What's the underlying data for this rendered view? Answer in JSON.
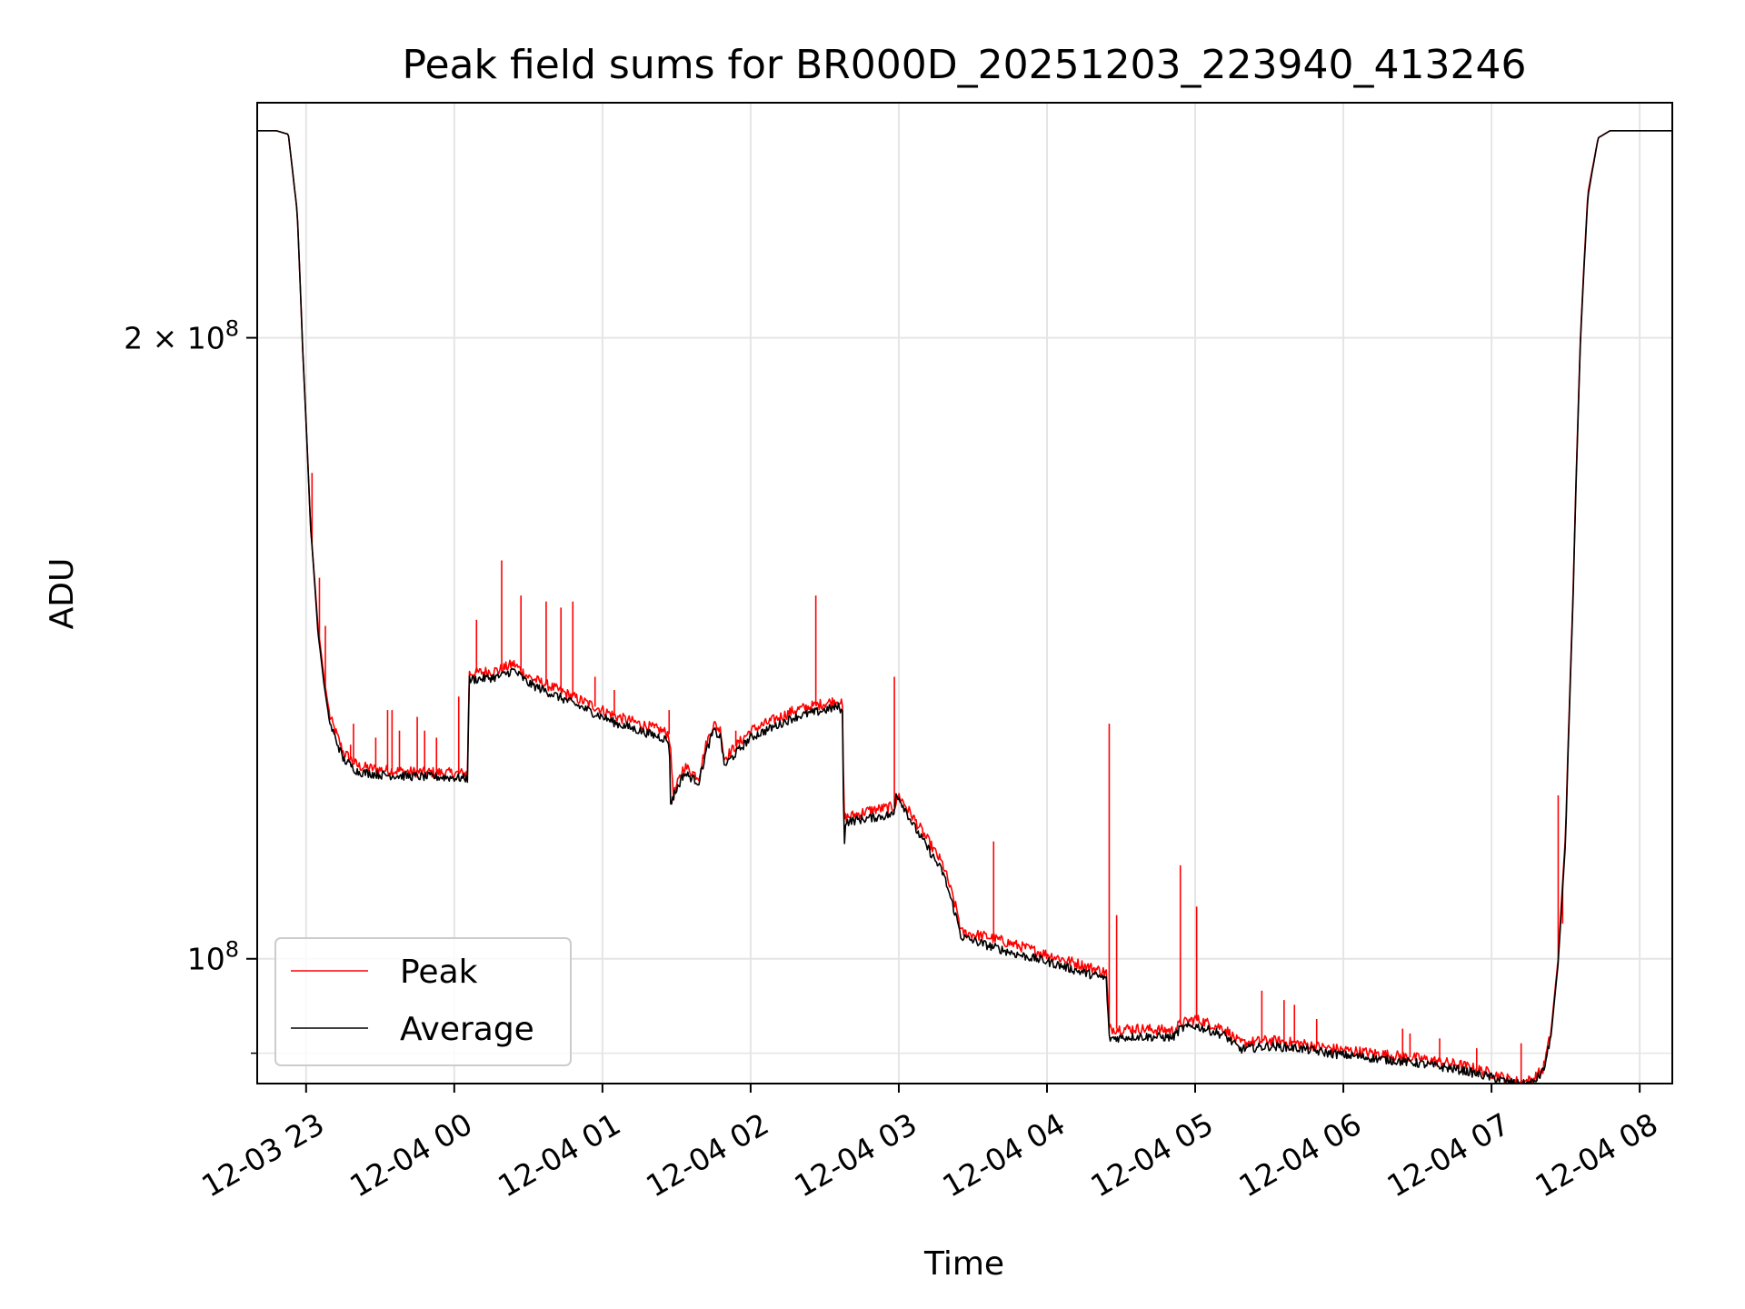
{
  "chart_data": {
    "type": "line",
    "title": "Peak field sums for BR000D_20251203_223940_413246",
    "xlabel": "Time",
    "ylabel": "ADU",
    "yscale": "log",
    "ylim": [
      87000000,
      260000000
    ],
    "xlim_hours": [
      -0.33,
      9.22
    ],
    "x_unit": "hours since 2025-12-03 23:00",
    "grid": true,
    "legend_position": "lower-left",
    "x_ticks": [
      {
        "hour": 0,
        "label": "12-03 23"
      },
      {
        "hour": 1,
        "label": "12-04 00"
      },
      {
        "hour": 2,
        "label": "12-04 01"
      },
      {
        "hour": 3,
        "label": "12-04 02"
      },
      {
        "hour": 4,
        "label": "12-04 03"
      },
      {
        "hour": 5,
        "label": "12-04 04"
      },
      {
        "hour": 6,
        "label": "12-04 05"
      },
      {
        "hour": 7,
        "label": "12-04 06"
      },
      {
        "hour": 8,
        "label": "12-04 07"
      },
      {
        "hour": 9,
        "label": "12-04 08"
      }
    ],
    "y_ticks": [
      {
        "value": 200000000,
        "base": "2 × 10",
        "exp": "8"
      },
      {
        "value": 100000000,
        "base": "10",
        "exp": "8"
      }
    ],
    "y_minor_ticks": [
      90000000
    ],
    "series": [
      {
        "name": "Peak",
        "color": "#ff0000",
        "points": [
          [
            -0.33,
            252000000
          ],
          [
            -0.2,
            252000000
          ],
          [
            -0.12,
            251000000
          ],
          [
            -0.06,
            230000000
          ],
          [
            -0.02,
            195000000
          ],
          [
            0.03,
            162000000
          ],
          [
            0.08,
            145000000
          ],
          [
            0.12,
            137000000
          ],
          [
            0.16,
            131000000
          ],
          [
            0.25,
            126000000
          ],
          [
            0.35,
            124000000
          ],
          [
            0.5,
            123500000
          ],
          [
            0.7,
            123200000
          ],
          [
            0.9,
            123100000
          ],
          [
            1.0,
            123000000
          ],
          [
            1.09,
            123000000
          ],
          [
            1.1,
            137500000
          ],
          [
            1.3,
            138000000
          ],
          [
            1.4,
            139000000
          ],
          [
            1.5,
            137000000
          ],
          [
            1.8,
            134000000
          ],
          [
            2.1,
            131000000
          ],
          [
            2.4,
            129000000
          ],
          [
            2.45,
            128500000
          ],
          [
            2.48,
            120000000
          ],
          [
            2.55,
            124000000
          ],
          [
            2.65,
            122500000
          ],
          [
            2.7,
            127000000
          ],
          [
            2.75,
            130000000
          ],
          [
            2.8,
            129000000
          ],
          [
            2.82,
            125000000
          ],
          [
            3.0,
            129000000
          ],
          [
            3.3,
            132000000
          ],
          [
            3.5,
            133000000
          ],
          [
            3.6,
            133500000
          ],
          [
            3.62,
            132500000
          ],
          [
            3.63,
            117000000
          ],
          [
            3.8,
            118000000
          ],
          [
            3.97,
            118500000
          ],
          [
            4.0,
            120000000
          ],
          [
            4.1,
            117000000
          ],
          [
            4.2,
            114000000
          ],
          [
            4.3,
            111000000
          ],
          [
            4.35,
            108000000
          ],
          [
            4.4,
            105000000
          ],
          [
            4.42,
            103000000
          ],
          [
            4.6,
            102500000
          ],
          [
            4.8,
            101500000
          ],
          [
            5.0,
            100500000
          ],
          [
            5.2,
            99500000
          ],
          [
            5.4,
            98500000
          ],
          [
            5.42,
            92500000
          ],
          [
            5.6,
            92500000
          ],
          [
            5.85,
            92300000
          ],
          [
            5.9,
            93000000
          ],
          [
            6.0,
            93500000
          ],
          [
            6.2,
            92500000
          ],
          [
            6.3,
            91000000
          ],
          [
            6.5,
            91300000
          ],
          [
            6.7,
            91000000
          ],
          [
            6.9,
            90500000
          ],
          [
            7.2,
            90000000
          ],
          [
            7.5,
            89500000
          ],
          [
            7.8,
            88800000
          ],
          [
            8.0,
            88000000
          ],
          [
            8.1,
            87500000
          ],
          [
            8.2,
            87100000
          ],
          [
            8.28,
            87400000
          ],
          [
            8.35,
            88500000
          ],
          [
            8.4,
            92000000
          ],
          [
            8.45,
            100000000
          ],
          [
            8.5,
            115000000
          ],
          [
            8.55,
            150000000
          ],
          [
            8.6,
            200000000
          ],
          [
            8.65,
            235000000
          ],
          [
            8.72,
            250000000
          ],
          [
            8.8,
            252000000
          ],
          [
            9.22,
            252000000
          ]
        ],
        "spikes": [
          [
            0.04,
            172000000
          ],
          [
            0.09,
            153000000
          ],
          [
            0.13,
            145000000
          ],
          [
            0.3,
            127000000
          ],
          [
            0.32,
            130000000
          ],
          [
            0.47,
            128000000
          ],
          [
            0.55,
            132000000
          ],
          [
            0.58,
            132000000
          ],
          [
            0.63,
            129000000
          ],
          [
            0.75,
            131000000
          ],
          [
            0.8,
            129000000
          ],
          [
            0.88,
            128000000
          ],
          [
            1.03,
            134000000
          ],
          [
            1.15,
            146000000
          ],
          [
            1.32,
            156000000
          ],
          [
            1.45,
            150000000
          ],
          [
            1.62,
            149000000
          ],
          [
            1.72,
            148000000
          ],
          [
            1.8,
            149000000
          ],
          [
            1.95,
            137000000
          ],
          [
            2.08,
            135000000
          ],
          [
            2.35,
            130000000
          ],
          [
            2.45,
            132000000
          ],
          [
            2.9,
            129000000
          ],
          [
            3.1,
            130000000
          ],
          [
            3.44,
            150000000
          ],
          [
            3.72,
            117000000
          ],
          [
            3.97,
            137000000
          ],
          [
            4.64,
            114000000
          ],
          [
            5.42,
            130000000
          ],
          [
            5.47,
            105000000
          ],
          [
            5.9,
            111000000
          ],
          [
            6.01,
            106000000
          ],
          [
            6.45,
            96500000
          ],
          [
            6.6,
            95500000
          ],
          [
            6.67,
            95000000
          ],
          [
            6.82,
            93500000
          ],
          [
            7.4,
            92500000
          ],
          [
            7.45,
            92000000
          ],
          [
            7.65,
            91500000
          ],
          [
            7.9,
            90500000
          ],
          [
            8.2,
            91000000
          ],
          [
            8.45,
            120000000
          ],
          [
            8.48,
            104000000
          ]
        ]
      },
      {
        "name": "Average",
        "color": "#000000",
        "points": [
          [
            -0.33,
            252000000
          ],
          [
            -0.2,
            252000000
          ],
          [
            -0.12,
            251000000
          ],
          [
            -0.06,
            230000000
          ],
          [
            -0.02,
            195000000
          ],
          [
            0.03,
            162000000
          ],
          [
            0.08,
            144000000
          ],
          [
            0.12,
            136000000
          ],
          [
            0.16,
            130000000
          ],
          [
            0.25,
            125000000
          ],
          [
            0.35,
            123200000
          ],
          [
            0.5,
            122800000
          ],
          [
            0.7,
            122600000
          ],
          [
            0.9,
            122500000
          ],
          [
            1.0,
            122400000
          ],
          [
            1.09,
            122300000
          ],
          [
            1.1,
            136500000
          ],
          [
            1.3,
            137000000
          ],
          [
            1.4,
            138000000
          ],
          [
            1.5,
            136000000
          ],
          [
            1.8,
            133000000
          ],
          [
            2.1,
            130000000
          ],
          [
            2.4,
            128000000
          ],
          [
            2.45,
            127500000
          ],
          [
            2.46,
            119000000
          ],
          [
            2.55,
            123000000
          ],
          [
            2.65,
            121800000
          ],
          [
            2.7,
            126000000
          ],
          [
            2.75,
            129000000
          ],
          [
            2.8,
            128000000
          ],
          [
            2.82,
            124000000
          ],
          [
            3.0,
            128000000
          ],
          [
            3.3,
            131000000
          ],
          [
            3.5,
            132000000
          ],
          [
            3.6,
            132500000
          ],
          [
            3.62,
            131500000
          ],
          [
            3.63,
            113000000
          ],
          [
            3.64,
            116500000
          ],
          [
            3.8,
            117000000
          ],
          [
            3.97,
            117500000
          ],
          [
            3.98,
            120500000
          ],
          [
            4.1,
            116000000
          ],
          [
            4.2,
            113000000
          ],
          [
            4.3,
            110000000
          ],
          [
            4.35,
            107000000
          ],
          [
            4.4,
            104000000
          ],
          [
            4.42,
            102500000
          ],
          [
            4.6,
            101500000
          ],
          [
            4.8,
            100500000
          ],
          [
            5.0,
            99700000
          ],
          [
            5.2,
            98700000
          ],
          [
            5.4,
            97800000
          ],
          [
            5.42,
            91500000
          ],
          [
            5.6,
            91700000
          ],
          [
            5.85,
            91600000
          ],
          [
            5.9,
            92500000
          ],
          [
            6.0,
            92800000
          ],
          [
            6.2,
            91800000
          ],
          [
            6.3,
            90400000
          ],
          [
            6.5,
            90700000
          ],
          [
            6.7,
            90500000
          ],
          [
            6.9,
            90000000
          ],
          [
            7.2,
            89500000
          ],
          [
            7.5,
            89000000
          ],
          [
            7.8,
            88300000
          ],
          [
            8.0,
            87600000
          ],
          [
            8.1,
            87200000
          ],
          [
            8.2,
            86900000
          ],
          [
            8.28,
            87100000
          ],
          [
            8.35,
            88200000
          ],
          [
            8.4,
            91500000
          ],
          [
            8.45,
            99500000
          ],
          [
            8.5,
            114000000
          ],
          [
            8.55,
            149000000
          ],
          [
            8.6,
            199000000
          ],
          [
            8.65,
            234000000
          ],
          [
            8.72,
            250000000
          ],
          [
            8.8,
            252000000
          ],
          [
            9.22,
            252000000
          ]
        ]
      }
    ]
  }
}
